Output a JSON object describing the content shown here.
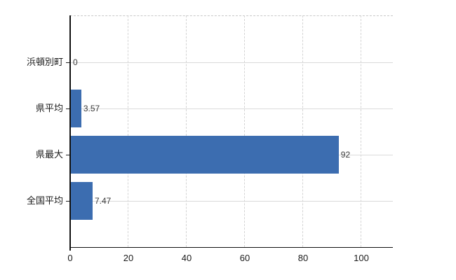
{
  "chart_data": {
    "type": "bar",
    "orientation": "horizontal",
    "title": "",
    "xlabel": "",
    "ylabel": "",
    "categories": [
      "浜頓別町",
      "県平均",
      "県最大",
      "全国平均"
    ],
    "values": [
      0,
      3.57,
      92,
      7.47
    ],
    "value_labels": [
      "0",
      "3.57",
      "92",
      "7.47"
    ],
    "x_ticks": [
      "0",
      "20",
      "40",
      "60",
      "80",
      "100"
    ],
    "x_tick_values": [
      0,
      20,
      40,
      60,
      80,
      100
    ],
    "xlim": [
      0,
      110.8
    ],
    "grid": true,
    "legend": "none",
    "bar_color": "#3c6db0",
    "axis_color": "#111111",
    "gridline_color": "#d9d9d9",
    "label_color": "#1a1a1a",
    "background_color": "#ffffff"
  }
}
